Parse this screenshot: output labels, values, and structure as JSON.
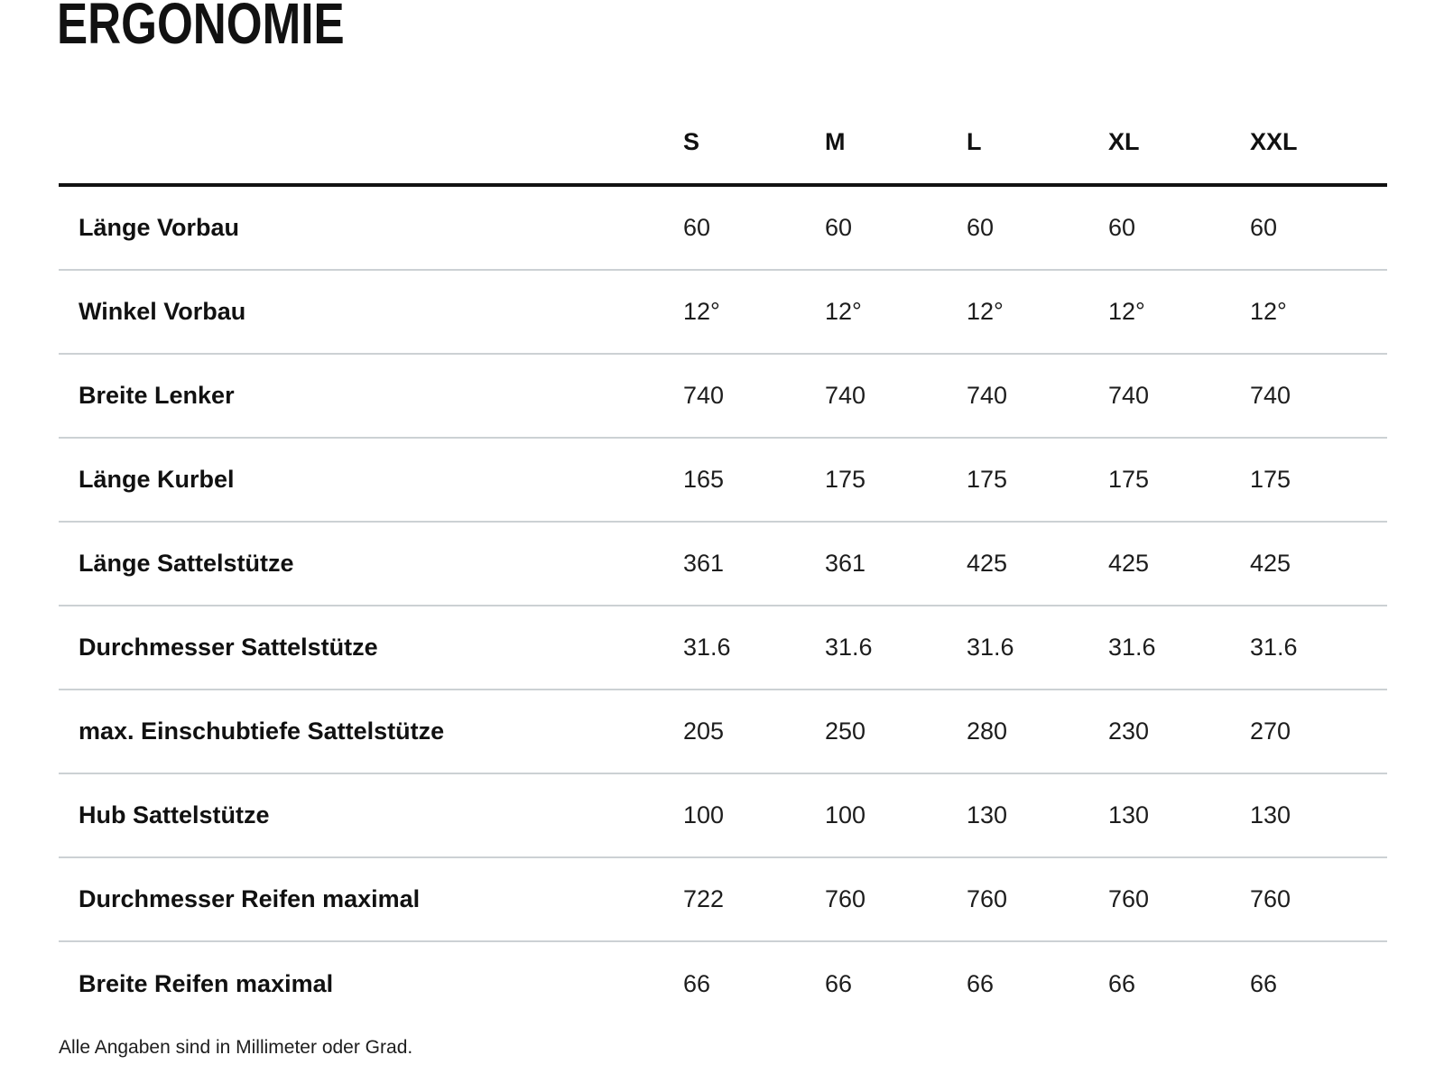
{
  "page": {
    "title": "ERGONOMIE",
    "footnote": "Alle Angaben sind in Millimeter oder Grad."
  },
  "table": {
    "columns": [
      "S",
      "M",
      "L",
      "XL",
      "XXL"
    ],
    "rows": [
      {
        "label": "Länge Vorbau",
        "values": [
          "60",
          "60",
          "60",
          "60",
          "60"
        ]
      },
      {
        "label": "Winkel Vorbau",
        "values": [
          "12°",
          "12°",
          "12°",
          "12°",
          "12°"
        ]
      },
      {
        "label": "Breite Lenker",
        "values": [
          "740",
          "740",
          "740",
          "740",
          "740"
        ]
      },
      {
        "label": "Länge Kurbel",
        "values": [
          "165",
          "175",
          "175",
          "175",
          "175"
        ]
      },
      {
        "label": "Länge Sattelstütze",
        "values": [
          "361",
          "361",
          "425",
          "425",
          "425"
        ]
      },
      {
        "label": "Durchmesser Sattelstütze",
        "values": [
          "31.6",
          "31.6",
          "31.6",
          "31.6",
          "31.6"
        ]
      },
      {
        "label": "max. Einschubtiefe Sattelstütze",
        "values": [
          "205",
          "250",
          "280",
          "230",
          "270"
        ]
      },
      {
        "label": "Hub Sattelstütze",
        "values": [
          "100",
          "100",
          "130",
          "130",
          "130"
        ]
      },
      {
        "label": "Durchmesser Reifen maximal",
        "values": [
          "722",
          "760",
          "760",
          "760",
          "760"
        ]
      },
      {
        "label": "Breite Reifen maximal",
        "values": [
          "66",
          "66",
          "66",
          "66",
          "66"
        ]
      }
    ]
  },
  "colors": {
    "text": "#111111",
    "value_text": "#1d1d1d",
    "header_rule": "#111111",
    "separator": "#ccd1d4",
    "background": "#ffffff"
  }
}
